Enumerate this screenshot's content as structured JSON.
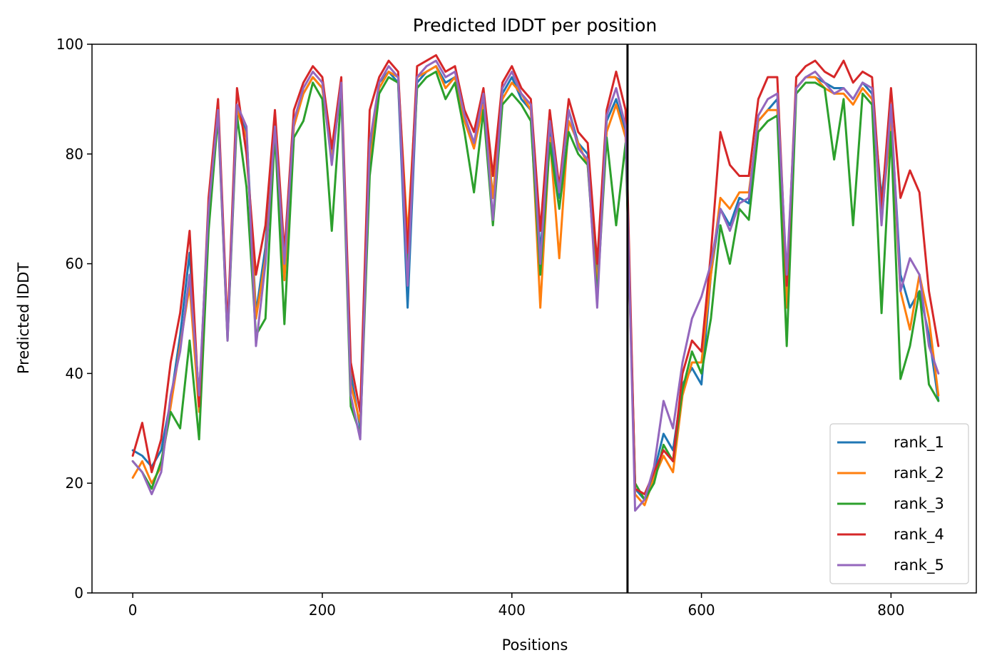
{
  "chart_data": {
    "type": "line",
    "title": "Predicted lDDT per position",
    "xlabel": "Positions",
    "ylabel": "Predicted lDDT",
    "xlim": [
      -43,
      890
    ],
    "ylim": [
      0,
      100
    ],
    "xticks": [
      0,
      200,
      400,
      600,
      800
    ],
    "yticks": [
      0,
      20,
      40,
      60,
      80,
      100
    ],
    "grid": false,
    "legend_position": "lower-right",
    "chain_break_x": 522,
    "chain_break_color": "#000000",
    "x": [
      0,
      10,
      20,
      30,
      40,
      50,
      60,
      70,
      80,
      90,
      100,
      110,
      120,
      130,
      140,
      150,
      160,
      170,
      180,
      190,
      200,
      210,
      220,
      230,
      240,
      250,
      260,
      270,
      280,
      290,
      300,
      310,
      320,
      330,
      340,
      350,
      360,
      370,
      380,
      390,
      400,
      410,
      420,
      430,
      440,
      450,
      460,
      470,
      480,
      490,
      500,
      510,
      520,
      530,
      540,
      550,
      560,
      570,
      580,
      590,
      600,
      610,
      620,
      630,
      640,
      650,
      660,
      670,
      680,
      690,
      700,
      710,
      720,
      730,
      740,
      750,
      760,
      770,
      780,
      790,
      800,
      810,
      820,
      830,
      840,
      850
    ],
    "series": [
      {
        "name": "rank_1",
        "color": "#1f77b4",
        "values": [
          26,
          25,
          23,
          26,
          35,
          47,
          62,
          35,
          70,
          89,
          47,
          88,
          84,
          51,
          63,
          86,
          58,
          86,
          91,
          94,
          92,
          80,
          92,
          40,
          30,
          80,
          93,
          95,
          93,
          52,
          93,
          95,
          96,
          93,
          94,
          87,
          82,
          90,
          72,
          91,
          94,
          90,
          88,
          62,
          84,
          72,
          88,
          82,
          80,
          58,
          86,
          90,
          84,
          19,
          17,
          22,
          29,
          26,
          38,
          41,
          38,
          58,
          70,
          67,
          72,
          71,
          86,
          88,
          90,
          55,
          92,
          94,
          94,
          93,
          92,
          92,
          90,
          93,
          91,
          72,
          87,
          58,
          52,
          55,
          47,
          35
        ]
      },
      {
        "name": "rank_2",
        "color": "#ff7f0e",
        "values": [
          21,
          24,
          20,
          23,
          34,
          45,
          56,
          33,
          68,
          88,
          47,
          88,
          83,
          50,
          61,
          85,
          57,
          85,
          91,
          94,
          92,
          79,
          92,
          38,
          31,
          78,
          92,
          95,
          94,
          65,
          94,
          95,
          96,
          92,
          94,
          86,
          81,
          89,
          72,
          90,
          93,
          91,
          88,
          52,
          83,
          61,
          86,
          82,
          78,
          56,
          84,
          89,
          83,
          18,
          16,
          21,
          25,
          22,
          36,
          42,
          42,
          58,
          72,
          70,
          73,
          73,
          86,
          88,
          88,
          52,
          92,
          94,
          94,
          92,
          91,
          91,
          89,
          92,
          90,
          68,
          86,
          55,
          48,
          58,
          50,
          36
        ]
      },
      {
        "name": "rank_3",
        "color": "#2ca02c",
        "values": [
          24,
          22,
          19,
          24,
          33,
          30,
          46,
          28,
          66,
          87,
          46,
          87,
          74,
          47,
          50,
          84,
          49,
          83,
          86,
          93,
          90,
          66,
          91,
          34,
          29,
          76,
          91,
          94,
          93,
          60,
          92,
          94,
          95,
          90,
          93,
          84,
          73,
          88,
          67,
          89,
          91,
          89,
          86,
          58,
          82,
          70,
          84,
          80,
          78,
          54,
          83,
          67,
          82,
          20,
          17,
          20,
          27,
          24,
          37,
          44,
          40,
          50,
          67,
          60,
          70,
          68,
          84,
          86,
          87,
          45,
          91,
          93,
          93,
          92,
          79,
          90,
          67,
          91,
          89,
          51,
          84,
          39,
          45,
          55,
          38,
          35
        ]
      },
      {
        "name": "rank_4",
        "color": "#d62728",
        "values": [
          25,
          31,
          22,
          28,
          42,
          51,
          66,
          34,
          72,
          90,
          48,
          92,
          80,
          58,
          67,
          88,
          62,
          88,
          93,
          96,
          94,
          81,
          94,
          42,
          33,
          88,
          94,
          97,
          95,
          62,
          96,
          97,
          98,
          95,
          96,
          88,
          84,
          92,
          76,
          93,
          96,
          92,
          90,
          66,
          88,
          74,
          90,
          84,
          82,
          60,
          88,
          95,
          88,
          19,
          18,
          22,
          26,
          24,
          40,
          46,
          44,
          62,
          84,
          78,
          76,
          76,
          90,
          94,
          94,
          56,
          94,
          96,
          97,
          95,
          94,
          97,
          93,
          95,
          94,
          70,
          92,
          72,
          77,
          73,
          55,
          45
        ]
      },
      {
        "name": "rank_5",
        "color": "#9467bd",
        "values": [
          24,
          22,
          18,
          22,
          36,
          44,
          58,
          36,
          70,
          88,
          46,
          89,
          85,
          45,
          60,
          85,
          60,
          86,
          92,
          95,
          93,
          78,
          93,
          36,
          28,
          82,
          93,
          96,
          94,
          56,
          94,
          96,
          97,
          94,
          95,
          87,
          82,
          91,
          68,
          92,
          95,
          91,
          89,
          60,
          86,
          73,
          88,
          81,
          79,
          52,
          87,
          92,
          85,
          15,
          17,
          23,
          35,
          30,
          42,
          50,
          54,
          60,
          70,
          66,
          71,
          72,
          87,
          90,
          91,
          58,
          92,
          94,
          95,
          93,
          91,
          92,
          90,
          93,
          92,
          67,
          89,
          55,
          61,
          58,
          45,
          40
        ]
      }
    ]
  }
}
